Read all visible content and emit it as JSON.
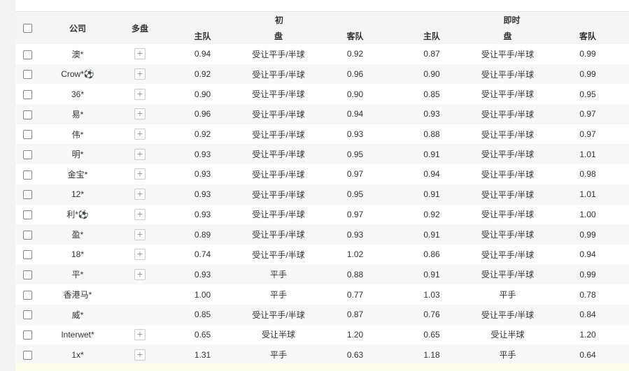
{
  "header": {
    "company": "公司",
    "multi": "多盘",
    "initial": "初",
    "initial_home": "主队",
    "initial_line": "盘",
    "initial_away": "客队",
    "live": "即时",
    "live_home": "主队",
    "live_line": "盘",
    "live_away": "客队"
  },
  "rows": [
    {
      "company": "澳*",
      "plus": true,
      "ih": "0.94",
      "il": "受让平手/半球",
      "ia": "0.92",
      "lh": "0.87",
      "ll": "受让平手/半球",
      "la": "0.99"
    },
    {
      "company": "Crow*⚽",
      "plus": true,
      "ih": "0.92",
      "il": "受让平手/半球",
      "ia": "0.96",
      "lh": "0.90",
      "ll": "受让平手/半球",
      "la": "0.99"
    },
    {
      "company": "36*",
      "plus": true,
      "ih": "0.90",
      "il": "受让平手/半球",
      "ia": "0.90",
      "lh": "0.85",
      "ll": "受让平手/半球",
      "la": "0.95"
    },
    {
      "company": "易*",
      "plus": true,
      "ih": "0.96",
      "il": "受让平手/半球",
      "ia": "0.94",
      "lh": "0.93",
      "ll": "受让平手/半球",
      "la": "0.97"
    },
    {
      "company": "伟*",
      "plus": true,
      "ih": "0.92",
      "il": "受让平手/半球",
      "ia": "0.93",
      "lh": "0.88",
      "ll": "受让平手/半球",
      "la": "0.97"
    },
    {
      "company": "明*",
      "plus": true,
      "ih": "0.93",
      "il": "受让平手/半球",
      "ia": "0.95",
      "lh": "0.91",
      "ll": "受让平手/半球",
      "la": "1.01"
    },
    {
      "company": "金宝*",
      "plus": true,
      "ih": "0.93",
      "il": "受让平手/半球",
      "ia": "0.97",
      "lh": "0.94",
      "ll": "受让平手/半球",
      "la": "0.98"
    },
    {
      "company": "12*",
      "plus": true,
      "ih": "0.93",
      "il": "受让平手/半球",
      "ia": "0.95",
      "lh": "0.91",
      "ll": "受让平手/半球",
      "la": "1.01"
    },
    {
      "company": "利*⚽",
      "plus": true,
      "ih": "0.93",
      "il": "受让平手/半球",
      "ia": "0.97",
      "lh": "0.92",
      "ll": "受让平手/半球",
      "la": "1.00"
    },
    {
      "company": "盈*",
      "plus": true,
      "ih": "0.89",
      "il": "受让平手/半球",
      "ia": "0.93",
      "lh": "0.91",
      "ll": "受让平手/半球",
      "la": "0.99"
    },
    {
      "company": "18*",
      "plus": true,
      "ih": "0.74",
      "il": "受让平手/半球",
      "ia": "1.02",
      "lh": "0.86",
      "ll": "受让平手/半球",
      "la": "0.94"
    },
    {
      "company": "平*",
      "plus": true,
      "ih": "0.93",
      "il": "平手",
      "ia": "0.88",
      "lh": "0.91",
      "ll": "受让平手/半球",
      "la": "0.99"
    },
    {
      "company": "香港马*",
      "plus": false,
      "ih": "1.00",
      "il": "平手",
      "ia": "0.77",
      "lh": "1.03",
      "ll": "平手",
      "la": "0.78"
    },
    {
      "company": "威*",
      "plus": false,
      "ih": "0.85",
      "il": "受让平手/半球",
      "ia": "0.87",
      "lh": "0.76",
      "ll": "受让平手/半球",
      "la": "0.84"
    },
    {
      "company": "Interwet*",
      "plus": true,
      "ih": "0.65",
      "il": "受让半球",
      "ia": "1.20",
      "lh": "0.65",
      "ll": "受让半球",
      "la": "1.20"
    },
    {
      "company": "1x*",
      "plus": true,
      "ih": "1.31",
      "il": "平手",
      "ia": "0.63",
      "lh": "1.18",
      "ll": "平手",
      "la": "0.64"
    }
  ]
}
